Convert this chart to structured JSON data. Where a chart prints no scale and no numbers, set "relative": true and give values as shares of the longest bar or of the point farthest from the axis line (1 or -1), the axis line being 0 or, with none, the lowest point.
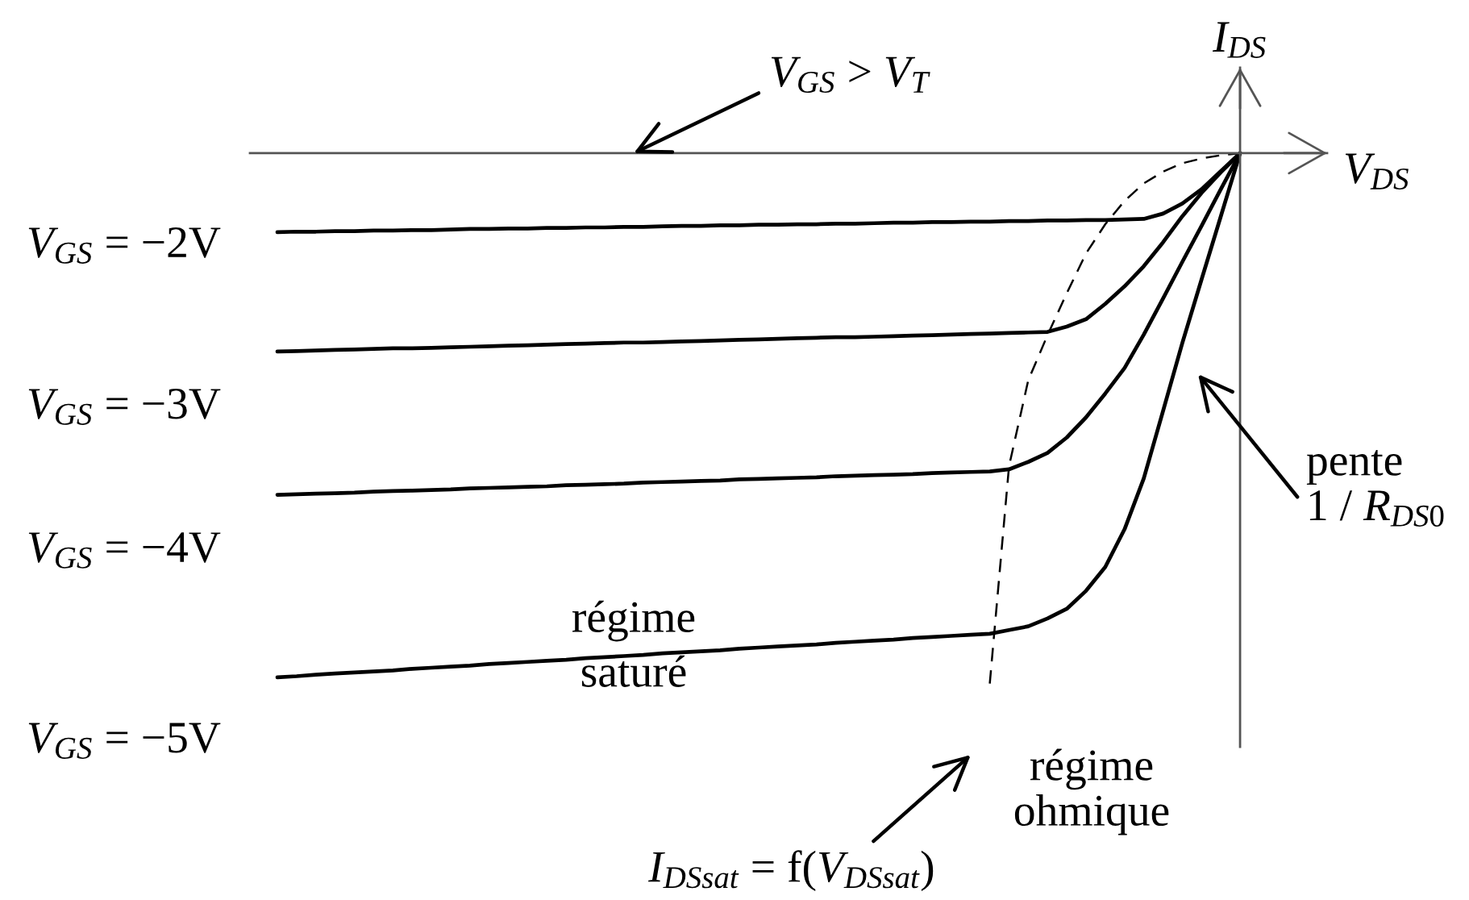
{
  "chart_data": {
    "type": "line",
    "relative": true,
    "tick_labels": false,
    "xlabel": "V$_{DS}$",
    "ylabel": "I$_{DS}$",
    "categories": [
      null,
      null,
      null,
      null,
      null,
      null,
      null,
      null,
      null,
      null,
      null,
      null,
      null,
      null,
      null,
      null,
      null,
      null,
      null,
      null,
      null,
      null,
      null,
      null,
      null,
      null,
      null,
      null,
      null,
      null,
      null,
      null,
      null,
      null,
      null,
      null,
      null,
      null,
      null,
      null,
      null,
      null,
      null,
      null,
      null,
      null,
      null,
      null,
      null,
      null,
      null
    ],
    "series": [
      {
        "name": "V$_{GS}$ = −2V",
        "color": "#000000",
        "values": [
          -0.149,
          -0.148,
          -0.148,
          -0.147,
          -0.147,
          -0.146,
          -0.146,
          -0.145,
          -0.145,
          -0.144,
          -0.143,
          -0.143,
          -0.142,
          -0.142,
          -0.141,
          -0.141,
          -0.14,
          -0.14,
          -0.139,
          -0.139,
          -0.138,
          -0.137,
          -0.137,
          -0.136,
          -0.136,
          -0.135,
          -0.135,
          -0.134,
          -0.134,
          -0.133,
          -0.133,
          -0.132,
          -0.131,
          -0.131,
          -0.13,
          -0.13,
          -0.129,
          -0.129,
          -0.128,
          -0.128,
          -0.127,
          -0.127,
          -0.126,
          -0.126,
          -0.125,
          -0.124,
          -0.114,
          -0.095,
          -0.068,
          -0.034,
          0
        ]
      },
      {
        "name": "V$_{GS}$ = −3V",
        "color": "#000000",
        "values": [
          -0.374,
          -0.373,
          -0.372,
          -0.371,
          -0.37,
          -0.369,
          -0.368,
          -0.368,
          -0.367,
          -0.366,
          -0.365,
          -0.364,
          -0.363,
          -0.362,
          -0.361,
          -0.36,
          -0.359,
          -0.358,
          -0.357,
          -0.357,
          -0.356,
          -0.355,
          -0.354,
          -0.353,
          -0.352,
          -0.351,
          -0.35,
          -0.349,
          -0.348,
          -0.347,
          -0.347,
          -0.346,
          -0.345,
          -0.344,
          -0.343,
          -0.342,
          -0.341,
          -0.34,
          -0.339,
          -0.338,
          -0.337,
          -0.327,
          -0.313,
          -0.284,
          -0.251,
          -0.213,
          -0.168,
          -0.119,
          -0.075,
          -0.036,
          0
        ]
      },
      {
        "name": "V$_{GS}$ = −4V",
        "color": "#000000",
        "values": [
          -0.644,
          -0.643,
          -0.642,
          -0.641,
          -0.64,
          -0.638,
          -0.637,
          -0.636,
          -0.635,
          -0.634,
          -0.632,
          -0.631,
          -0.63,
          -0.629,
          -0.628,
          -0.626,
          -0.625,
          -0.624,
          -0.623,
          -0.621,
          -0.62,
          -0.619,
          -0.618,
          -0.617,
          -0.615,
          -0.614,
          -0.613,
          -0.612,
          -0.611,
          -0.609,
          -0.608,
          -0.607,
          -0.606,
          -0.605,
          -0.603,
          -0.602,
          -0.601,
          -0.6,
          -0.596,
          -0.582,
          -0.565,
          -0.536,
          -0.498,
          -0.453,
          -0.405,
          -0.342,
          -0.274,
          -0.205,
          -0.137,
          -0.068,
          0
        ]
      },
      {
        "name": "V$_{GS}$ = −5V",
        "color": "#000000",
        "values": [
          -0.988,
          -0.986,
          -0.983,
          -0.981,
          -0.979,
          -0.977,
          -0.975,
          -0.972,
          -0.97,
          -0.968,
          -0.966,
          -0.963,
          -0.961,
          -0.959,
          -0.957,
          -0.955,
          -0.952,
          -0.95,
          -0.948,
          -0.946,
          -0.943,
          -0.941,
          -0.939,
          -0.937,
          -0.934,
          -0.932,
          -0.93,
          -0.928,
          -0.926,
          -0.923,
          -0.921,
          -0.919,
          -0.917,
          -0.914,
          -0.912,
          -0.91,
          -0.908,
          -0.906,
          -0.899,
          -0.892,
          -0.877,
          -0.859,
          -0.825,
          -0.78,
          -0.709,
          -0.613,
          -0.486,
          -0.358,
          -0.238,
          -0.119,
          0
        ]
      },
      {
        "color": "#000000",
        "line_style": "dashed",
        "values": [
          null,
          null,
          null,
          null,
          null,
          null,
          null,
          null,
          null,
          null,
          null,
          null,
          null,
          null,
          null,
          null,
          null,
          null,
          null,
          null,
          null,
          null,
          null,
          null,
          null,
          null,
          null,
          null,
          null,
          null,
          null,
          null,
          null,
          null,
          null,
          null,
          null,
          -1.0,
          -0.59,
          -0.428,
          -0.343,
          -0.264,
          -0.189,
          -0.134,
          -0.09,
          -0.057,
          -0.035,
          -0.019,
          -0.01,
          -0.004,
          0
        ]
      }
    ],
    "annotations": [
      "V$_{GS}$ > V$_{T}$",
      "pente\n1 / R$_{DS0}$",
      "régime\nsaturé",
      "régime\nohmique",
      "I$_{DSsat}$ = f(V$_{DSsat}$)"
    ]
  }
}
